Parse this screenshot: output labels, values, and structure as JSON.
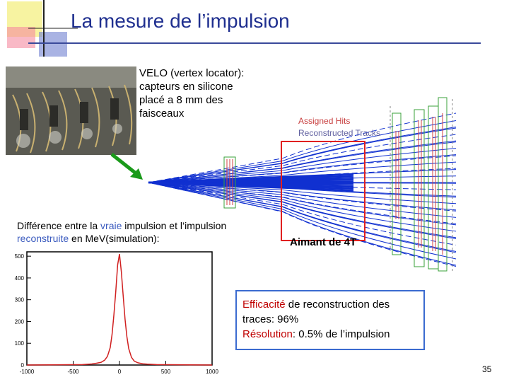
{
  "slide": {
    "title": "La mesure de l’impulsion",
    "velo_text": "VELO (vertex locator): capteurs en silicone placé a 8 mm des faisceaux",
    "diff_text_pre": "Différence entre la ",
    "diff_vraie": "vraie",
    "diff_text_mid": " impulsion et l’impulsion ",
    "diff_reconstruite": "reconstruite",
    "diff_text_post": " en MeV(simulation):",
    "aimant_label": "Aimant de 4T",
    "legend_hits": "Assigned Hits",
    "legend_tracks": "Reconstructed Tracks",
    "efficacite_word": "Efficacité",
    "efficacite_rest": " de reconstruction des traces: 96%",
    "resolution_word": "Résolution",
    "resolution_rest": ": 0.5% de l’impulsion",
    "page_number": "35"
  },
  "colors": {
    "title": "#1f2f8f",
    "accent_red": "#c00000",
    "accent_blue": "#3b5bbf",
    "track_blue": "#1030d0",
    "box_border": "#3b6bd0"
  },
  "chart_data": {
    "type": "histogram",
    "title": "",
    "xlabel": "",
    "ylabel": "",
    "x_ticks": [
      "-1000",
      "-500",
      "0",
      "500",
      "1000"
    ],
    "y_ticks": [
      "0",
      "100",
      "200",
      "300",
      "400",
      "500"
    ],
    "xlim": [
      -1000,
      1000
    ],
    "ylim": [
      0,
      520
    ],
    "bins": [
      {
        "x": -400,
        "y": 2
      },
      {
        "x": -300,
        "y": 5
      },
      {
        "x": -250,
        "y": 8
      },
      {
        "x": -200,
        "y": 12
      },
      {
        "x": -160,
        "y": 22
      },
      {
        "x": -130,
        "y": 40
      },
      {
        "x": -100,
        "y": 80
      },
      {
        "x": -80,
        "y": 140
      },
      {
        "x": -60,
        "y": 230
      },
      {
        "x": -40,
        "y": 340
      },
      {
        "x": -20,
        "y": 460
      },
      {
        "x": 0,
        "y": 510
      },
      {
        "x": 20,
        "y": 430
      },
      {
        "x": 40,
        "y": 320
      },
      {
        "x": 60,
        "y": 210
      },
      {
        "x": 80,
        "y": 130
      },
      {
        "x": 100,
        "y": 75
      },
      {
        "x": 130,
        "y": 35
      },
      {
        "x": 160,
        "y": 18
      },
      {
        "x": 200,
        "y": 10
      },
      {
        "x": 250,
        "y": 6
      },
      {
        "x": 300,
        "y": 4
      },
      {
        "x": 400,
        "y": 2
      }
    ]
  }
}
